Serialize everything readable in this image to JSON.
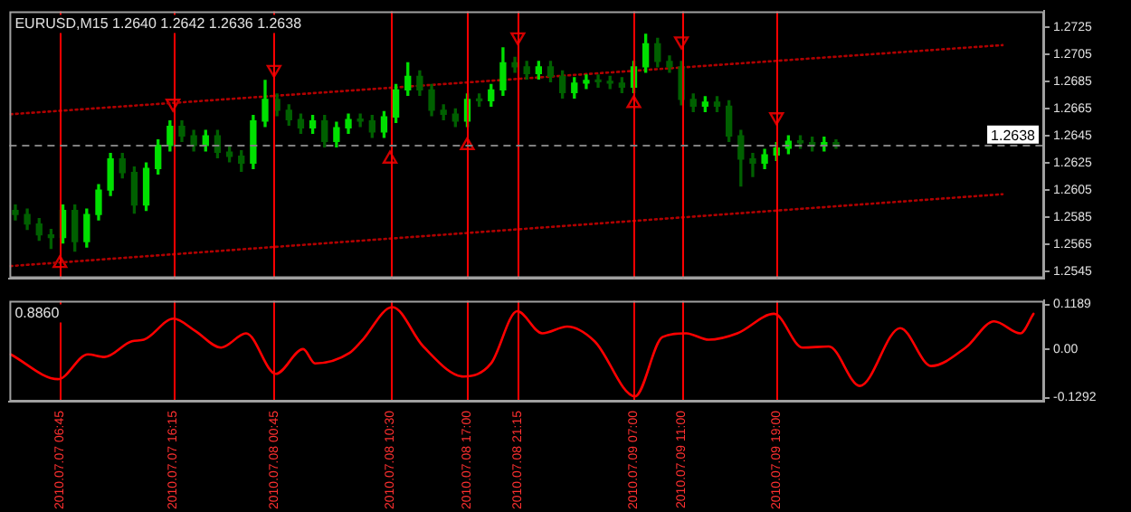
{
  "chart_data": [
    {
      "type": "candlestick",
      "title": "EURUSD,M15 1.2640 1.2642 1.2636 1.2638",
      "colors": [
        "#006000",
        "#006000",
        "#006000",
        "#006000",
        "#00e000",
        "#006000",
        "#00e000",
        "#00e000",
        "#00e000",
        "#006000",
        "#006000",
        "#00e000",
        "#00e000",
        "#00e000",
        "#006000",
        "#006000",
        "#00e000",
        "#006000",
        "#006000",
        "#006000",
        "#00e000",
        "#00e000",
        "#006000",
        "#006000",
        "#006000",
        "#00e000",
        "#006000",
        "#00e000",
        "#00e000",
        "#006000",
        "#006000",
        "#00e000",
        "#00e000",
        "#00e000",
        "#006000",
        "#006000",
        "#006000",
        "#006000",
        "#00e000",
        "#006000",
        "#00e000",
        "#00e000",
        "#006000",
        "#006000",
        "#00e000",
        "#006000",
        "#006000",
        "#00e000",
        "#00e000",
        "#006000",
        "#006000",
        "#006000",
        "#00e000",
        "#00e000",
        "#006000",
        "#006000",
        "#006000",
        "#006000",
        "#00e000",
        "#006000",
        "#006000",
        "#006000",
        "#006000",
        "#00e000",
        "#00e000",
        "#00e000",
        "#006000",
        "#006000",
        "#00e000",
        "#006000"
      ],
      "x": [
        "2010-07-07T03:00",
        "2010-07-07T04:00",
        "2010-07-07T05:00",
        "2010-07-07T06:00",
        "2010-07-07T07:00",
        "2010-07-07T08:00",
        "2010-07-07T09:00",
        "2010-07-07T10:00",
        "2010-07-07T11:00",
        "2010-07-07T12:00",
        "2010-07-07T13:00",
        "2010-07-07T14:00",
        "2010-07-07T15:00",
        "2010-07-07T16:00",
        "2010-07-07T17:00",
        "2010-07-07T18:00",
        "2010-07-07T19:00",
        "2010-07-07T20:00",
        "2010-07-07T21:00",
        "2010-07-07T22:00",
        "2010-07-07T23:00",
        "2010-07-08T00:00",
        "2010-07-08T01:00",
        "2010-07-08T02:00",
        "2010-07-08T03:00",
        "2010-07-08T04:00",
        "2010-07-08T05:00",
        "2010-07-08T06:00",
        "2010-07-08T07:00",
        "2010-07-08T08:00",
        "2010-07-08T09:00",
        "2010-07-08T10:00",
        "2010-07-08T11:00",
        "2010-07-08T12:00",
        "2010-07-08T13:00",
        "2010-07-08T14:00",
        "2010-07-08T15:00",
        "2010-07-08T16:00",
        "2010-07-08T17:00",
        "2010-07-08T18:00",
        "2010-07-08T19:00",
        "2010-07-08T20:00",
        "2010-07-08T21:00",
        "2010-07-08T22:00",
        "2010-07-08T23:00",
        "2010-07-09T00:00",
        "2010-07-09T01:00",
        "2010-07-09T02:00",
        "2010-07-09T03:00",
        "2010-07-09T04:00",
        "2010-07-09T05:00",
        "2010-07-09T06:00",
        "2010-07-09T07:00",
        "2010-07-09T08:00",
        "2010-07-09T09:00",
        "2010-07-09T10:00",
        "2010-07-09T11:00",
        "2010-07-09T12:00",
        "2010-07-09T13:00",
        "2010-07-09T14:00",
        "2010-07-09T15:00",
        "2010-07-09T16:00",
        "2010-07-09T17:00",
        "2010-07-09T18:00",
        "2010-07-09T19:00",
        "2010-07-09T20:00",
        "2010-07-09T21:00",
        "2010-07-09T22:00",
        "2010-07-09T23:00",
        "2010-07-10T00:00"
      ],
      "ohlc": [
        [
          1.259,
          1.2594,
          1.2583,
          1.2587
        ],
        [
          1.2587,
          1.2591,
          1.2576,
          1.258
        ],
        [
          1.258,
          1.2584,
          1.2568,
          1.2572
        ],
        [
          1.2572,
          1.2576,
          1.2562,
          1.257
        ],
        [
          1.257,
          1.2594,
          1.2566,
          1.259
        ],
        [
          1.259,
          1.2594,
          1.256,
          1.2567
        ],
        [
          1.2567,
          1.2591,
          1.2563,
          1.2587
        ],
        [
          1.2587,
          1.2609,
          1.2583,
          1.2605
        ],
        [
          1.2605,
          1.2632,
          1.2601,
          1.2628
        ],
        [
          1.2628,
          1.2632,
          1.2614,
          1.2618
        ],
        [
          1.2618,
          1.2622,
          1.2588,
          1.2594
        ],
        [
          1.2594,
          1.2625,
          1.259,
          1.2621
        ],
        [
          1.2621,
          1.2642,
          1.2617,
          1.2638
        ],
        [
          1.2638,
          1.2656,
          1.2634,
          1.2652
        ],
        [
          1.2652,
          1.2656,
          1.2641,
          1.2645
        ],
        [
          1.2645,
          1.2649,
          1.2634,
          1.2638
        ],
        [
          1.2638,
          1.2649,
          1.2634,
          1.2645
        ],
        [
          1.2645,
          1.2649,
          1.2629,
          1.2633
        ],
        [
          1.2633,
          1.2637,
          1.2626,
          1.263
        ],
        [
          1.263,
          1.2634,
          1.2619,
          1.2625
        ],
        [
          1.2625,
          1.266,
          1.2621,
          1.2656
        ],
        [
          1.2656,
          1.2686,
          1.2652,
          1.2672
        ],
        [
          1.2672,
          1.2676,
          1.266,
          1.2664
        ],
        [
          1.2664,
          1.2668,
          1.2653,
          1.2657
        ],
        [
          1.2657,
          1.2661,
          1.2647,
          1.2651
        ],
        [
          1.2651,
          1.266,
          1.2647,
          1.2656
        ],
        [
          1.2656,
          1.266,
          1.2637,
          1.2641
        ],
        [
          1.2641,
          1.2655,
          1.2637,
          1.2651
        ],
        [
          1.2651,
          1.2661,
          1.2647,
          1.2657
        ],
        [
          1.2657,
          1.2661,
          1.2652,
          1.2656
        ],
        [
          1.2656,
          1.266,
          1.2644,
          1.2648
        ],
        [
          1.2648,
          1.2663,
          1.2644,
          1.2659
        ],
        [
          1.2659,
          1.2683,
          1.2655,
          1.2679
        ],
        [
          1.2679,
          1.2699,
          1.2675,
          1.2689
        ],
        [
          1.2689,
          1.2693,
          1.2675,
          1.2679
        ],
        [
          1.2679,
          1.2683,
          1.266,
          1.2664
        ],
        [
          1.2664,
          1.2668,
          1.2657,
          1.2661
        ],
        [
          1.2661,
          1.2665,
          1.2652,
          1.2656
        ],
        [
          1.2656,
          1.2676,
          1.2652,
          1.2672
        ],
        [
          1.2672,
          1.2676,
          1.2667,
          1.2671
        ],
        [
          1.2671,
          1.2683,
          1.2667,
          1.2679
        ],
        [
          1.2679,
          1.271,
          1.2675,
          1.2699
        ],
        [
          1.2699,
          1.2703,
          1.2692,
          1.2696
        ],
        [
          1.2696,
          1.27,
          1.2687,
          1.2691
        ],
        [
          1.2691,
          1.27,
          1.2687,
          1.2696
        ],
        [
          1.2696,
          1.27,
          1.2685,
          1.2689
        ],
        [
          1.2689,
          1.2693,
          1.2673,
          1.2677
        ],
        [
          1.2677,
          1.2688,
          1.2673,
          1.2684
        ],
        [
          1.2684,
          1.269,
          1.268,
          1.2686
        ],
        [
          1.2686,
          1.269,
          1.2681,
          1.2685
        ],
        [
          1.2685,
          1.2689,
          1.268,
          1.2684
        ],
        [
          1.2684,
          1.2688,
          1.2677,
          1.2681
        ],
        [
          1.2681,
          1.27,
          1.2677,
          1.2696
        ],
        [
          1.2696,
          1.272,
          1.2692,
          1.2713
        ],
        [
          1.2713,
          1.2717,
          1.2696,
          1.27
        ],
        [
          1.27,
          1.2704,
          1.2692,
          1.2696
        ],
        [
          1.2696,
          1.27,
          1.2668,
          1.2672
        ],
        [
          1.2672,
          1.2676,
          1.2663,
          1.2667
        ],
        [
          1.2667,
          1.2674,
          1.2663,
          1.267
        ],
        [
          1.267,
          1.2674,
          1.2663,
          1.2667
        ],
        [
          1.2667,
          1.2671,
          1.2641,
          1.2645
        ],
        [
          1.2645,
          1.2649,
          1.2608,
          1.2628
        ],
        [
          1.2628,
          1.2632,
          1.2615,
          1.2625
        ],
        [
          1.2625,
          1.2635,
          1.2621,
          1.2631
        ],
        [
          1.2631,
          1.264,
          1.2627,
          1.2636
        ],
        [
          1.2636,
          1.2645,
          1.2632,
          1.2641
        ],
        [
          1.2641,
          1.2645,
          1.2636,
          1.264
        ],
        [
          1.264,
          1.2644,
          1.2634,
          1.2638
        ],
        [
          1.2638,
          1.2644,
          1.2634,
          1.264
        ],
        [
          1.264,
          1.2642,
          1.2636,
          1.2638
        ]
      ],
      "series": [
        {
          "type": "line",
          "color": "#b00000",
          "line_style": "dotted",
          "marker": "none",
          "x": [
            "2010-07-07T02:36",
            "2010-07-10T14:00"
          ],
          "values": [
            1.2661,
            1.2712
          ]
        },
        {
          "type": "line",
          "color": "#b00000",
          "line_style": "dotted",
          "marker": "none",
          "x": [
            "2010-07-07T02:36",
            "2010-07-10T14:00"
          ],
          "values": [
            1.2549,
            1.2602
          ]
        },
        {
          "type": "scatter",
          "color": "#d00000",
          "marker": "triangle",
          "x": [
            "2010-07-07T06:45",
            "2010-07-08T10:30",
            "2010-07-08T17:00",
            "2010-07-09T07:00"
          ],
          "values": [
            1.2551,
            1.2628,
            1.2638,
            1.2669
          ]
        },
        {
          "type": "scatter",
          "color": "#d00000",
          "marker": "triangle",
          "x": [
            "2010-07-07T16:15",
            "2010-07-08T00:45",
            "2010-07-08T21:15",
            "2010-07-09T11:00",
            "2010-07-09T19:00"
          ],
          "values": [
            1.2669,
            1.2694,
            1.2718,
            1.2715,
            1.2659
          ]
        }
      ],
      "xlim": [
        "2010-07-07T02:30",
        "2010-07-10T17:30"
      ],
      "ylim": [
        1.254,
        1.2737
      ],
      "yticks": [
        1.2545,
        1.2565,
        1.2585,
        1.2605,
        1.2625,
        1.2645,
        1.2665,
        1.2685,
        1.2705,
        1.2725
      ],
      "tick_labels": "y",
      "grid": false,
      "legend": false,
      "ref_lines": [
        {
          "axis": "x",
          "value": "2010-07-07T06:45",
          "color": "#ff0000"
        },
        {
          "axis": "x",
          "value": "2010-07-07T16:15",
          "color": "#ff0000"
        },
        {
          "axis": "x",
          "value": "2010-07-08T00:45",
          "color": "#ff0000"
        },
        {
          "axis": "x",
          "value": "2010-07-08T10:30",
          "color": "#ff0000"
        },
        {
          "axis": "x",
          "value": "2010-07-08T17:00",
          "color": "#ff0000"
        },
        {
          "axis": "x",
          "value": "2010-07-08T21:15",
          "color": "#ff0000"
        },
        {
          "axis": "x",
          "value": "2010-07-09T07:00",
          "color": "#ff0000"
        },
        {
          "axis": "x",
          "value": "2010-07-09T11:00",
          "color": "#ff0000"
        },
        {
          "axis": "x",
          "value": "2010-07-09T19:00",
          "color": "#ff0000"
        },
        {
          "axis": "y",
          "value": 1.2638,
          "label": "1.2638",
          "color": "#808080",
          "line_style": "dashed"
        }
      ]
    },
    {
      "type": "line",
      "title": "0.8860",
      "series": [
        {
          "color": "#ff0000",
          "x": [
            "2010-07-07T02:36",
            "2010-07-07T06:36",
            "2010-07-07T09:06",
            "2010-07-07T10:30",
            "2010-07-07T12:48",
            "2010-07-07T13:48",
            "2010-07-07T16:18",
            "2010-07-07T18:06",
            "2010-07-07T20:18",
            "2010-07-07T22:24",
            "2010-07-08T00:54",
            "2010-07-08T03:12",
            "2010-07-08T04:12",
            "2010-07-08T07:06",
            "2010-07-08T08:06",
            "2010-07-08T10:42",
            "2010-07-08T13:18",
            "2010-07-08T16:42",
            "2010-07-08T19:00",
            "2010-07-08T21:12",
            "2010-07-08T23:18",
            "2010-07-09T01:24",
            "2010-07-09T03:42",
            "2010-07-09T07:06",
            "2010-07-09T09:24",
            "2010-07-09T11:24",
            "2010-07-09T13:18",
            "2010-07-09T15:42",
            "2010-07-09T18:48",
            "2010-07-09T21:12",
            "2010-07-09T23:24",
            "2010-07-10T02:00",
            "2010-07-10T05:24",
            "2010-07-10T08:00",
            "2010-07-10T10:54",
            "2010-07-10T13:18",
            "2010-07-10T15:30",
            "2010-07-10T16:36"
          ],
          "values": [
            -0.014,
            -0.08,
            -0.014,
            -0.021,
            0.021,
            0.025,
            0.081,
            0.049,
            0.004,
            0.042,
            -0.066,
            0.0,
            -0.038,
            -0.01,
            0.021,
            0.112,
            0.007,
            -0.073,
            -0.038,
            0.101,
            0.042,
            0.06,
            0.021,
            -0.126,
            0.032,
            0.042,
            0.025,
            0.042,
            0.094,
            0.004,
            0.007,
            -0.098,
            0.056,
            -0.045,
            0.004,
            0.074,
            0.042,
            0.094
          ]
        }
      ],
      "marker": "none",
      "xlim": [
        "2010-07-07T02:30",
        "2010-07-10T17:30"
      ],
      "ylim": [
        -0.14,
        0.129
      ],
      "yticks": [
        0.1189,
        {
          "value": 0,
          "label": "0.00"
        },
        -0.1292
      ],
      "xticks": [
        {
          "value": "2010-07-07T06:45",
          "label": "2010.07.07 06:45"
        },
        {
          "value": "2010-07-07T16:15",
          "label": "2010.07.07 16:15"
        },
        {
          "value": "2010-07-08T00:45",
          "label": "2010.07.08 00:45"
        },
        {
          "value": "2010-07-08T10:30",
          "label": "2010.07.08 10:30"
        },
        {
          "value": "2010-07-08T17:00",
          "label": "2010.07.08 17:00"
        },
        {
          "value": "2010-07-08T21:15",
          "label": "2010.07.08 21:15"
        },
        {
          "value": "2010-07-09T07:00",
          "label": "2010.07.09 07:00"
        },
        {
          "value": "2010-07-09T11:00",
          "label": "2010.07.09 11:00"
        },
        {
          "value": "2010-07-09T19:00",
          "label": "2010.07.09 19:00"
        }
      ],
      "grid": false,
      "legend": false,
      "ref_lines": [
        {
          "axis": "x",
          "value": "2010-07-07T06:45",
          "color": "#ff0000"
        },
        {
          "axis": "x",
          "value": "2010-07-07T16:15",
          "color": "#ff0000"
        },
        {
          "axis": "x",
          "value": "2010-07-08T00:45",
          "color": "#ff0000"
        },
        {
          "axis": "x",
          "value": "2010-07-08T10:30",
          "color": "#ff0000"
        },
        {
          "axis": "x",
          "value": "2010-07-08T17:00",
          "color": "#ff0000"
        },
        {
          "axis": "x",
          "value": "2010-07-08T21:15",
          "color": "#ff0000"
        },
        {
          "axis": "x",
          "value": "2010-07-09T07:00",
          "color": "#ff0000"
        },
        {
          "axis": "x",
          "value": "2010-07-09T11:00",
          "color": "#ff0000"
        },
        {
          "axis": "x",
          "value": "2010-07-09T19:00",
          "color": "#ff0000"
        }
      ]
    }
  ]
}
